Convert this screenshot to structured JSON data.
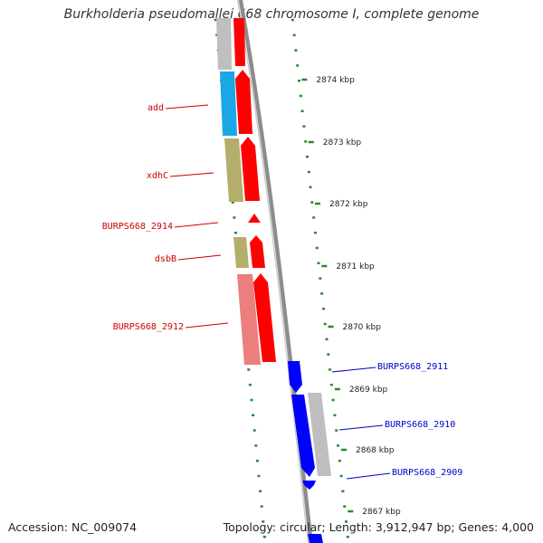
{
  "title": "Burkholderia pseudomallei 668 chromosome I, complete genome",
  "accession": "Accession: NC_009074",
  "summary": "Topology: circular; Length: 3,912,947 bp; Genes: 4,000",
  "colors": {
    "tick": "#2a8a2a",
    "backbone": "#8c8c8c",
    "fwd_label": "#cc0000",
    "rev_label": "#0000cc",
    "red": "#ff0000",
    "blue": "#0000ff",
    "gray": "#bfbfbf",
    "cyan": "#1aa7e6",
    "olive": "#b5ad6a",
    "salmon": "#ec7e7e"
  },
  "scale_labels": [
    "2874 kbp",
    "2873 kbp",
    "2872 kbp",
    "2871 kbp",
    "2870 kbp",
    "2869 kbp",
    "2868 kbp",
    "2867 kbp"
  ],
  "gene_labels": [
    {
      "text": "add",
      "strand": "forward"
    },
    {
      "text": "xdhC",
      "strand": "forward"
    },
    {
      "text": "BURPS668_2914",
      "strand": "forward"
    },
    {
      "text": "dsbB",
      "strand": "forward"
    },
    {
      "text": "BURPS668_2912",
      "strand": "forward"
    },
    {
      "text": "BURPS668_2911",
      "strand": "reverse"
    },
    {
      "text": "BURPS668_2910",
      "strand": "reverse"
    },
    {
      "text": "BURPS668_2909",
      "strand": "reverse"
    }
  ]
}
